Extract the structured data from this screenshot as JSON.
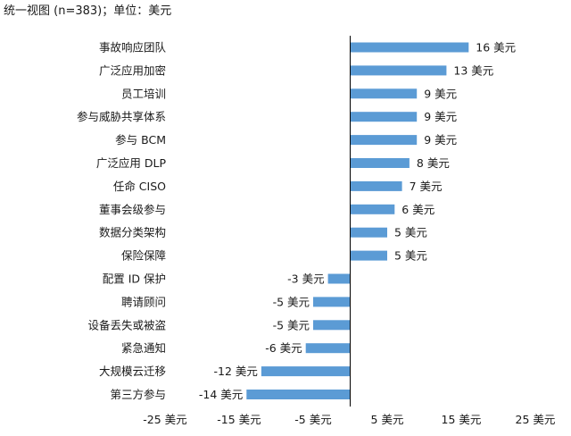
{
  "title": "统一视图 (n=383)；单位：美元",
  "chart_data": {
    "type": "bar",
    "orientation": "horizontal",
    "title": "统一视图 (n=383)；单位：美元",
    "categories": [
      "事故响应团队",
      "广泛应用加密",
      "员工培训",
      "参与威胁共享体系",
      "参与 BCM",
      "广泛应用 DLP",
      "任命 CISO",
      "董事会级参与",
      "数据分类架构",
      "保险保障",
      "配置 ID 保护",
      "聘请顾问",
      "设备丢失或被盗",
      "紧急通知",
      "大规模云迁移",
      "第三方参与"
    ],
    "values": [
      16,
      13,
      9,
      9,
      9,
      8,
      7,
      6,
      5,
      5,
      -3,
      -5,
      -5,
      -6,
      -12,
      -14
    ],
    "data_labels": [
      "16 美元",
      "13 美元",
      "9 美元",
      "9 美元",
      "9 美元",
      "8 美元",
      "7 美元",
      "6 美元",
      "5 美元",
      "5 美元",
      "-3 美元",
      "-5 美元",
      "-5 美元",
      "-6 美元",
      "-12 美元",
      "-14 美元"
    ],
    "xlim": [
      -25,
      25
    ],
    "x_tick_labels": [
      "-25 美元",
      "-15 美元",
      "-5 美元",
      "5 美元",
      "15 美元",
      "25 美元"
    ],
    "x_tick_values": [
      -25,
      -15,
      -5,
      5,
      15,
      25
    ],
    "grid": false,
    "bar_color": "#5b9bd5",
    "zero_line_color": "#000000"
  }
}
